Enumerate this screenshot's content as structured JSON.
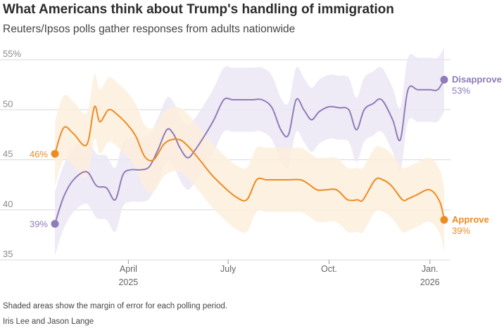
{
  "header": {
    "title": "What Americans think about Trump's handling of immigration",
    "subtitle": "Reuters/Ipsos polls gather responses from adults nationwide"
  },
  "footer": {
    "note": "Shaded areas show the margin of error for each polling period.",
    "byline": "Iris Lee and Jason Lange"
  },
  "colors": {
    "approve": "#ed8b22",
    "approve_band": "#fdeedd",
    "disapprove": "#8f7bb8",
    "disapprove_band": "#ece8f4",
    "grid": "#d8d8d8"
  },
  "chart_data": {
    "type": "line",
    "title": "What Americans think about Trump's handling of immigration",
    "subtitle": "Reuters/Ipsos polls gather responses from adults nationwide",
    "x_start": "2025-01-24",
    "x_end": "2026-01-14",
    "xlim": [
      "2025-01-10",
      "2026-01-20"
    ],
    "ylim": [
      35,
      55
    ],
    "y_ticks": [
      {
        "value": 35,
        "label": "35"
      },
      {
        "value": 40,
        "label": "40"
      },
      {
        "value": 45,
        "label": "45"
      },
      {
        "value": 50,
        "label": "50"
      },
      {
        "value": 55,
        "label": "55%"
      }
    ],
    "x_ticks": [
      {
        "date": "2025-04-01",
        "label": "April",
        "sublabel": "2025"
      },
      {
        "date": "2025-07-01",
        "label": "July",
        "sublabel": ""
      },
      {
        "date": "2025-10-01",
        "label": "Oct.",
        "sublabel": ""
      },
      {
        "date": "2026-01-01",
        "label": "Jan.",
        "sublabel": "2026"
      }
    ],
    "grid": true,
    "series": [
      {
        "name": "Disapprove",
        "key": "disapprove",
        "start_label": "39%",
        "end_label": "53%",
        "margin": 3.2,
        "x": [
          "2025-01-24",
          "2025-02-01",
          "2025-02-10",
          "2025-02-22",
          "2025-03-03",
          "2025-03-12",
          "2025-03-20",
          "2025-03-27",
          "2025-04-03",
          "2025-04-12",
          "2025-04-20",
          "2025-04-28",
          "2025-05-06",
          "2025-05-12",
          "2025-05-18",
          "2025-05-25",
          "2025-06-01",
          "2025-06-10",
          "2025-06-18",
          "2025-06-27",
          "2025-07-05",
          "2025-07-14",
          "2025-07-23",
          "2025-08-01",
          "2025-08-10",
          "2025-08-18",
          "2025-08-25",
          "2025-09-01",
          "2025-09-08",
          "2025-09-15",
          "2025-09-22",
          "2025-10-01",
          "2025-10-10",
          "2025-10-19",
          "2025-10-26",
          "2025-11-02",
          "2025-11-10",
          "2025-11-18",
          "2025-11-28",
          "2025-12-05",
          "2025-12-12",
          "2025-12-21",
          "2026-01-01",
          "2026-01-08",
          "2026-01-14"
        ],
        "values": [
          38.6,
          41.3,
          43.0,
          43.8,
          42.4,
          42.2,
          41.0,
          43.5,
          44.0,
          44.0,
          44.3,
          46.0,
          48.0,
          47.6,
          46.2,
          45.2,
          46.0,
          47.5,
          49.0,
          51.0,
          51.0,
          51.0,
          51.0,
          51.0,
          50.2,
          48.0,
          47.5,
          51.0,
          50.0,
          49.0,
          49.8,
          50.3,
          50.2,
          50.0,
          48.0,
          50.0,
          50.6,
          51.0,
          49.0,
          47.0,
          52.0,
          52.0,
          52.0,
          52.0,
          53.0
        ]
      },
      {
        "name": "Approve",
        "key": "approve",
        "start_label": "46%",
        "end_label": "39%",
        "margin": 3.2,
        "x": [
          "2025-01-24",
          "2025-02-01",
          "2025-02-10",
          "2025-02-22",
          "2025-03-01",
          "2025-03-06",
          "2025-03-14",
          "2025-03-22",
          "2025-04-01",
          "2025-04-08",
          "2025-04-16",
          "2025-04-24",
          "2025-05-03",
          "2025-05-10",
          "2025-05-18",
          "2025-05-25",
          "2025-06-05",
          "2025-06-16",
          "2025-06-27",
          "2025-07-08",
          "2025-07-18",
          "2025-07-27",
          "2025-08-05",
          "2025-08-15",
          "2025-08-25",
          "2025-09-05",
          "2025-09-12",
          "2025-09-20",
          "2025-09-28",
          "2025-10-08",
          "2025-10-18",
          "2025-10-27",
          "2025-11-01",
          "2025-11-12",
          "2025-11-19",
          "2025-11-27",
          "2025-12-07",
          "2025-12-12",
          "2025-12-20",
          "2026-01-01",
          "2026-01-10",
          "2026-01-14"
        ],
        "values": [
          45.6,
          48.2,
          47.6,
          46.5,
          50.3,
          48.8,
          50.0,
          49.5,
          48.4,
          47.3,
          45.3,
          45.0,
          46.5,
          47.0,
          47.0,
          46.4,
          45.0,
          43.5,
          42.3,
          41.3,
          41.0,
          43.0,
          43.0,
          43.0,
          43.0,
          43.0,
          42.6,
          42.0,
          42.0,
          42.0,
          41.0,
          41.0,
          41.0,
          43.0,
          43.0,
          42.4,
          41.0,
          41.1,
          41.5,
          42.0,
          40.8,
          39.0
        ]
      }
    ]
  }
}
